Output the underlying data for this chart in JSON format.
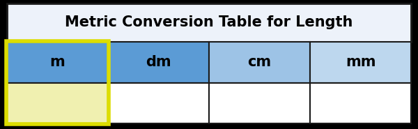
{
  "title": "Metric Conversion Table for Length",
  "title_fontsize": 15,
  "headers": [
    "m",
    "dm",
    "cm",
    "mm"
  ],
  "header_colors": [
    "#5b9bd5",
    "#5b9bd5",
    "#9dc3e6",
    "#bdd7ee"
  ],
  "data_row_colors": [
    "#f0f0b0",
    "#ffffff",
    "#ffffff",
    "#ffffff"
  ],
  "title_bg_color": "#edf2fa",
  "border_color": "#1a1a1a",
  "highlight_border_color": "#dddd00",
  "text_color": "#000000",
  "fig_bg_color": "#000000",
  "table_bg_color": "#ffffff"
}
